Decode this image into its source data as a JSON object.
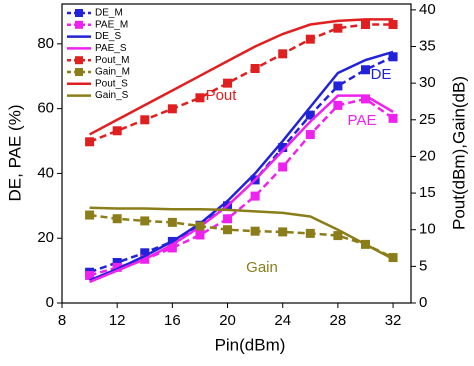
{
  "chart_data": {
    "type": "line",
    "x_label": "Pin(dBm)",
    "y_label": "DE, PAE (%)",
    "y2_label": "Pout(dBm),Gain(dB)",
    "x": [
      10,
      12,
      14,
      16,
      18,
      20,
      22,
      24,
      26,
      28,
      30,
      32
    ],
    "xlim": [
      8,
      33.3
    ],
    "xticks": [
      8,
      12,
      16,
      20,
      24,
      28,
      32
    ],
    "ylim": [
      0,
      92.3
    ],
    "yticks": [
      0,
      20,
      40,
      60,
      80
    ],
    "y2lim": [
      0,
      40.8
    ],
    "y2ticks": [
      0,
      5,
      10,
      15,
      20,
      25,
      30,
      35,
      40
    ],
    "legend": "upper left",
    "series": [
      {
        "name": "DE_M",
        "color": "#2222d8",
        "axis": "y",
        "style": "dashed",
        "marker": "square",
        "values": [
          9.5,
          12.5,
          15.5,
          19,
          24,
          30,
          38,
          48,
          58,
          67,
          72,
          76
        ]
      },
      {
        "name": "PAE_M",
        "color": "#ee22ee",
        "axis": "y",
        "style": "dashed",
        "marker": "square",
        "values": [
          8.5,
          11,
          13.5,
          17,
          21,
          26,
          33,
          42,
          52,
          61,
          63,
          57
        ]
      },
      {
        "name": "DE_S",
        "color": "#2222d8",
        "axis": "y",
        "style": "solid",
        "marker": "none",
        "values": [
          7,
          10.5,
          14.5,
          19,
          24.5,
          31.5,
          40,
          50,
          60.5,
          71,
          75,
          77.5
        ]
      },
      {
        "name": "PAE_S",
        "color": "#ee22ee",
        "axis": "y",
        "style": "solid",
        "marker": "none",
        "values": [
          6.5,
          10,
          13.5,
          18,
          23.5,
          30,
          38,
          47,
          56,
          64,
          64,
          59
        ]
      },
      {
        "name": "Pout_M",
        "color": "#e02020",
        "axis": "y2",
        "style": "dashed",
        "marker": "square",
        "values": [
          22,
          23.5,
          25,
          26.5,
          28,
          30,
          32,
          34,
          36,
          37.5,
          38,
          38
        ]
      },
      {
        "name": "Gain_M",
        "color": "#8b7d1a",
        "axis": "y2",
        "style": "dashed",
        "marker": "square",
        "values": [
          12,
          11.5,
          11.2,
          11,
          10.5,
          10,
          9.8,
          9.7,
          9.5,
          9.2,
          8,
          6.2
        ]
      },
      {
        "name": "Pout_S",
        "color": "#e02020",
        "axis": "y2",
        "style": "solid",
        "marker": "none",
        "values": [
          23,
          25,
          27,
          29,
          31,
          33,
          35,
          36.7,
          38,
          38.5,
          38.7,
          38.7
        ]
      },
      {
        "name": "Gain_S",
        "color": "#8b7d1a",
        "axis": "y2",
        "style": "solid",
        "marker": "none",
        "values": [
          13,
          12.9,
          12.9,
          12.8,
          12.8,
          12.7,
          12.5,
          12.3,
          11.8,
          10,
          8,
          6
        ]
      }
    ],
    "annotations": [
      {
        "text": "DE",
        "color": "#2222d8"
      },
      {
        "text": "PAE",
        "color": "#ee22ee"
      },
      {
        "text": "Pout",
        "color": "#e02020"
      },
      {
        "text": "Gain",
        "color": "#8b7d1a"
      }
    ]
  }
}
